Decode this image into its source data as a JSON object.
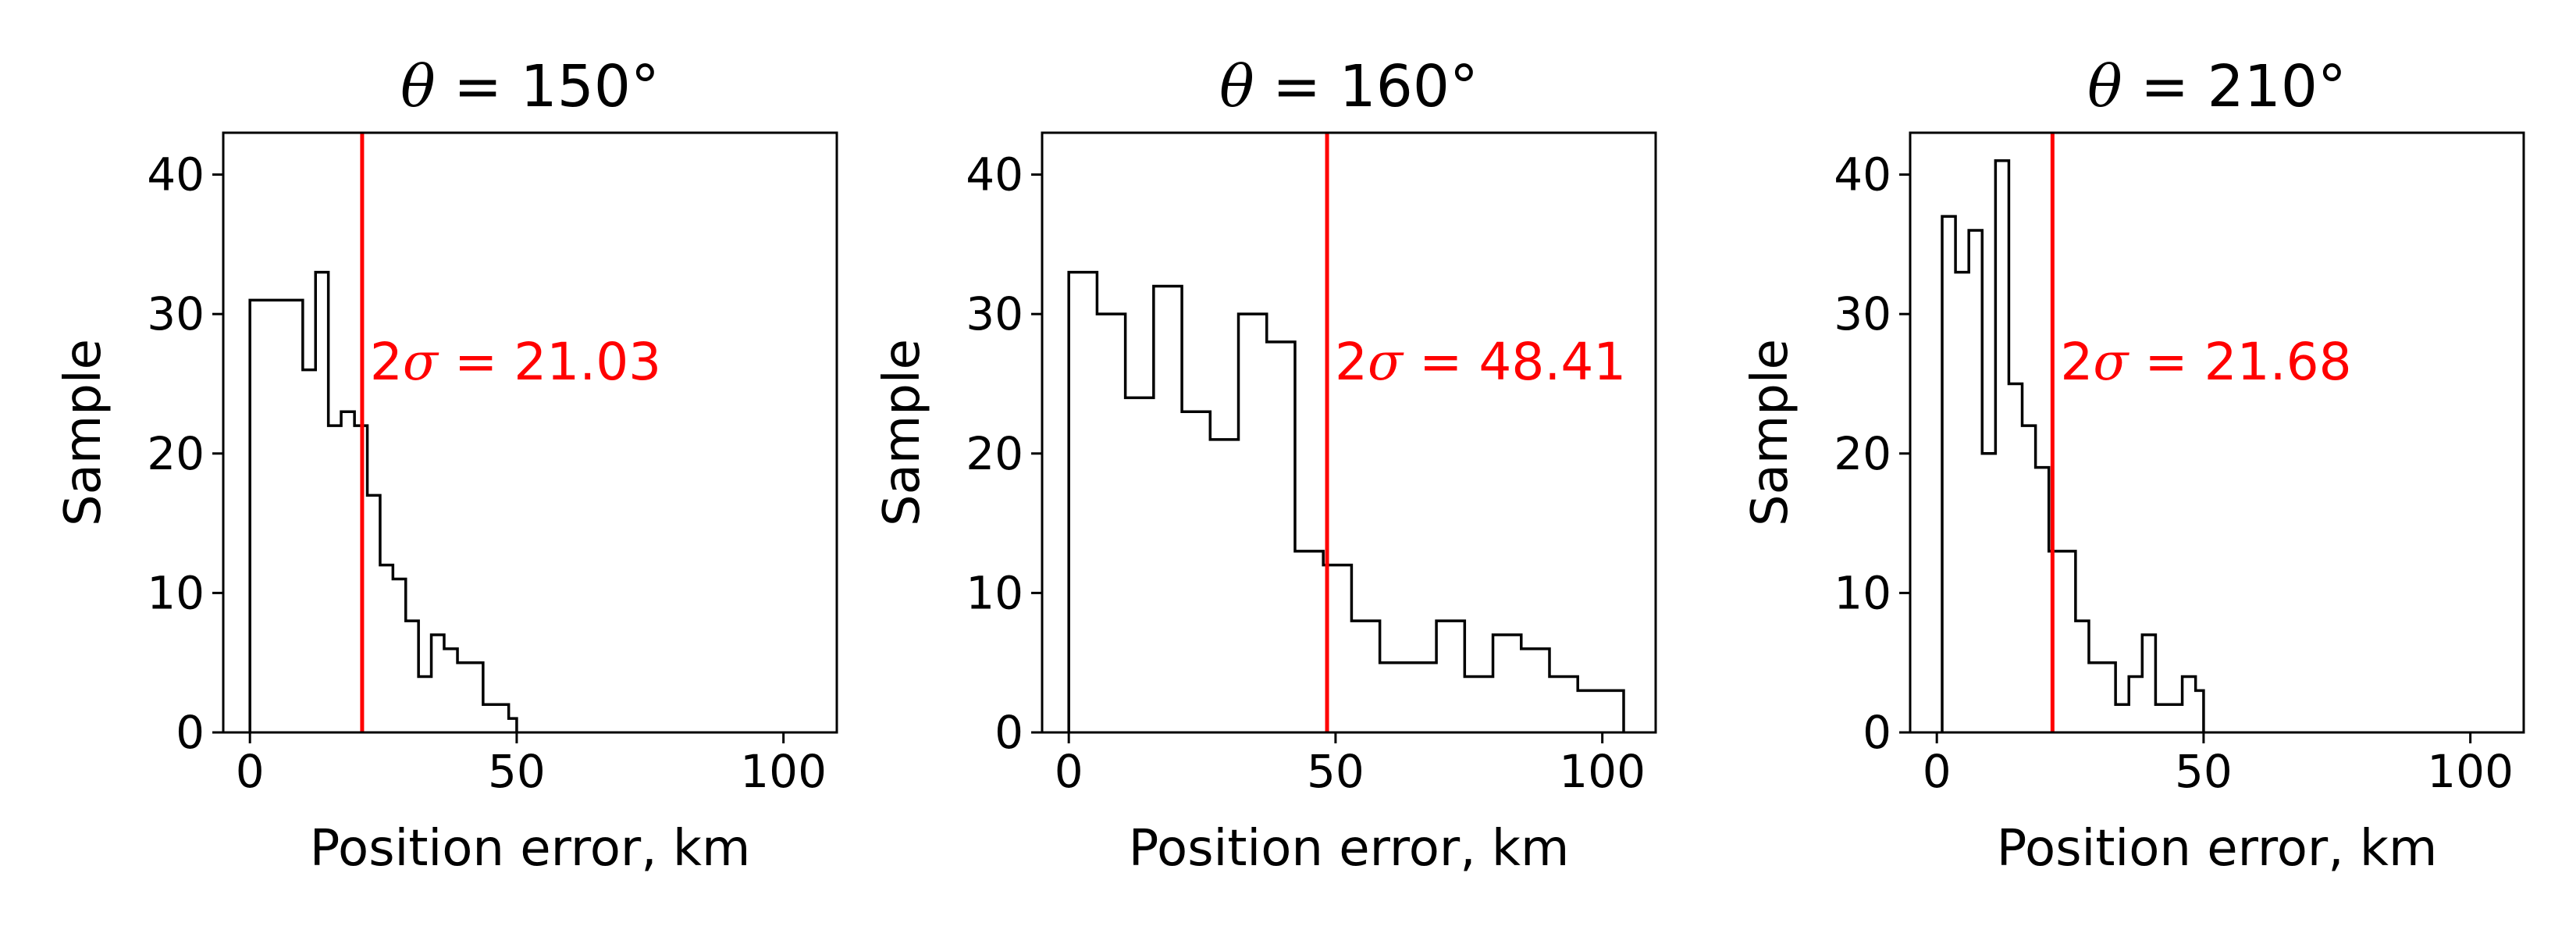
{
  "chart_data": [
    {
      "type": "histogram",
      "title": {
        "prefix": "θ",
        "rest": " = 150°"
      },
      "xlabel": "Position error, km",
      "ylabel": "Sample",
      "xlim": [
        -5,
        110
      ],
      "ylim": [
        0,
        43
      ],
      "xticks": [
        0,
        50,
        100
      ],
      "yticks": [
        0,
        10,
        20,
        30,
        40
      ],
      "bin_edges": [
        0.0,
        3.3,
        6.6,
        9.9,
        12.3,
        14.7,
        17.1,
        19.6,
        22.0,
        24.4,
        26.8,
        29.2,
        31.6,
        34.0,
        36.4,
        38.9,
        41.3,
        43.7,
        46.1,
        48.5,
        50.0
      ],
      "counts": [
        31,
        31,
        31,
        26,
        33,
        22,
        23,
        22,
        17,
        12,
        11,
        8,
        4,
        7,
        6,
        5,
        5,
        2,
        2,
        1
      ],
      "vline": {
        "x": 21.03,
        "color": "#ff0000"
      },
      "annotation": {
        "prefix": "2",
        "var": "σ",
        "rest": " = 21.03"
      },
      "grid": false
    },
    {
      "type": "histogram",
      "title": {
        "prefix": "θ",
        "rest": " = 160°"
      },
      "xlabel": "Position error, km",
      "ylabel": "Sample",
      "xlim": [
        -5,
        110
      ],
      "ylim": [
        0,
        43
      ],
      "xticks": [
        0,
        50,
        100
      ],
      "yticks": [
        0,
        10,
        20,
        30,
        40
      ],
      "bin_edges": [
        0.0,
        5.3,
        10.6,
        15.9,
        21.2,
        26.5,
        31.8,
        37.1,
        42.4,
        47.7,
        53.0,
        58.3,
        63.6,
        68.9,
        74.2,
        79.5,
        84.8,
        90.1,
        95.4,
        100.7,
        104.0
      ],
      "counts": [
        33,
        30,
        24,
        32,
        23,
        21,
        30,
        28,
        13,
        12,
        8,
        5,
        5,
        8,
        4,
        7,
        6,
        4,
        3,
        3
      ],
      "vline": {
        "x": 48.41,
        "color": "#ff0000"
      },
      "annotation": {
        "prefix": "2",
        "var": "σ",
        "rest": " = 48.41"
      },
      "grid": false
    },
    {
      "type": "histogram",
      "title": {
        "prefix": "θ",
        "rest": " = 210°"
      },
      "xlabel": "Position error, km",
      "ylabel": "Sample",
      "xlim": [
        -5,
        110
      ],
      "ylim": [
        0,
        43
      ],
      "xticks": [
        0,
        50,
        100
      ],
      "yticks": [
        0,
        10,
        20,
        30,
        40
      ],
      "bin_edges": [
        1.0,
        3.5,
        6.0,
        8.5,
        11.0,
        13.5,
        16.0,
        18.5,
        21.0,
        23.5,
        26.0,
        28.5,
        31.0,
        33.5,
        36.0,
        38.5,
        41.0,
        43.5,
        46.0,
        48.5,
        50.0
      ],
      "counts": [
        37,
        33,
        36,
        20,
        41,
        25,
        22,
        19,
        13,
        13,
        8,
        5,
        5,
        2,
        4,
        7,
        2,
        2,
        4,
        3
      ],
      "vline": {
        "x": 21.68,
        "color": "#ff0000"
      },
      "annotation": {
        "prefix": "2",
        "var": "σ",
        "rest": " = 21.68"
      },
      "grid": false
    }
  ]
}
